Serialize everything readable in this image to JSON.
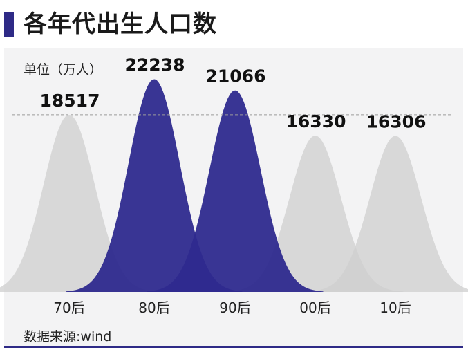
{
  "header": {
    "title": "各年代出生人口数"
  },
  "unit_label": "单位（万人）",
  "source_label": "数据来源:wind",
  "colors": {
    "accent": "#2e2a86",
    "muted": "#d8d8d8",
    "highlight_series": "#2e2a8e"
  },
  "chart_data": {
    "type": "area",
    "categories": [
      "70后",
      "80后",
      "90后",
      "00后",
      "10后"
    ],
    "values": [
      18517,
      22238,
      21066,
      16330,
      16306
    ],
    "highlighted": [
      false,
      true,
      true,
      false,
      false
    ],
    "reference_line": 18517,
    "ylim": [
      0,
      24000
    ],
    "grid": false
  }
}
